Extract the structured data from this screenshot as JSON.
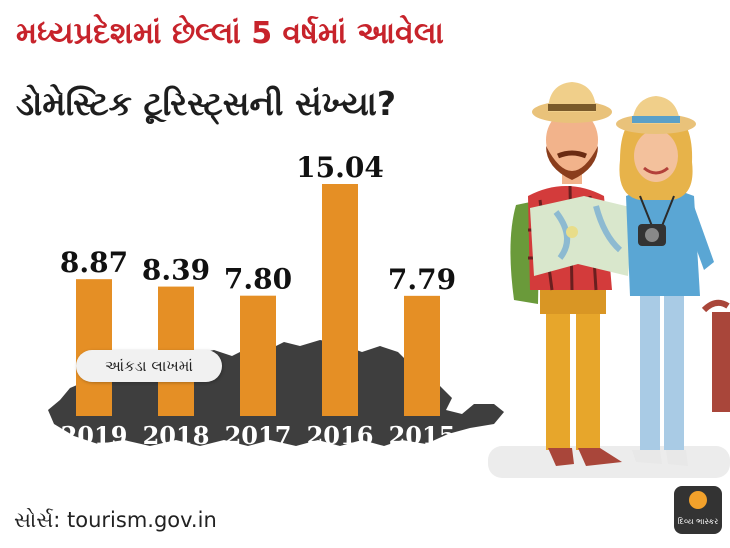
{
  "title_line1": "મધ્યપ્રદેશમાં છેલ્લાં 5 વર્ષમાં આવેલા",
  "title_line2": "ડોમેસ્ટિક ટૂરિસ્ટ્સની સંખ્યા?",
  "unit_badge": "આંકડા લાખમાં",
  "source": "સોર્સ: tourism.gov.in",
  "logo": "દિવ્ય ભાસ્કર",
  "colors": {
    "bar": "#e58f25",
    "title_red": "#c7232b",
    "map_gray": "#3e3e3e",
    "ground": "#ececec"
  },
  "icons": [
    "tourist-couple-illustration",
    "madhya-pradesh-map-silhouette",
    "divya-bhaskar-logo-icon"
  ],
  "chart_data": {
    "type": "bar",
    "categories": [
      "2019",
      "2018",
      "2017",
      "2016",
      "2015"
    ],
    "values": [
      8.87,
      8.39,
      7.8,
      15.04,
      7.79
    ],
    "value_labels": [
      "8.87",
      "8.39",
      "7.80",
      "15.04",
      "7.79"
    ],
    "ylim": [
      0,
      15.04
    ],
    "grid": false,
    "legend": "none"
  }
}
